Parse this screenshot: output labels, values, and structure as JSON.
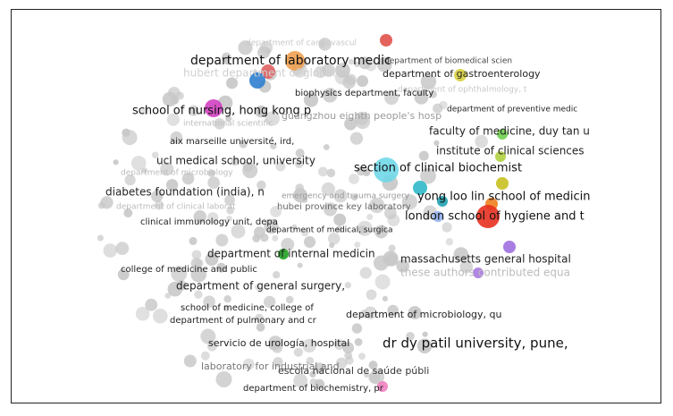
{
  "nodes": [
    {
      "label": "department of cardiovascul"
    },
    {
      "label": "department of biomedical scien"
    },
    {
      "label": "department of laboratory medic"
    },
    {
      "label": "hubert department of global"
    },
    {
      "label": "department of gastroenterology"
    },
    {
      "label": "department of ophthalmology, t"
    },
    {
      "label": "biophysics department, faculty"
    },
    {
      "label": "school of nursing, hong kong p"
    },
    {
      "label": "department of preventive medic"
    },
    {
      "label": "guangzhou eighth people's hosp"
    },
    {
      "label": "international scientific"
    },
    {
      "label": "faculty of medicine, duy tan u"
    },
    {
      "label": "aix marseille université, ird,"
    },
    {
      "label": "institute of clinical sciences"
    },
    {
      "label": "ucl medical school, university"
    },
    {
      "label": "section of clinical biochemist"
    },
    {
      "label": "department of microbiology"
    },
    {
      "label": "emergency and trauma surgery"
    },
    {
      "label": "diabetes foundation (india), n"
    },
    {
      "label": "yong loo lin school of medicin"
    },
    {
      "label": "department of clinical laborat"
    },
    {
      "label": "hubei province key laboratory"
    },
    {
      "label": "london school of hygiene and t"
    },
    {
      "label": "clinical immunology unit, depa"
    },
    {
      "label": "department of medical, surgica"
    },
    {
      "label": "department of internal medicin"
    },
    {
      "label": "massachusetts general hospital"
    },
    {
      "label": "college of medicine and public"
    },
    {
      "label": "these authors contributed equa"
    },
    {
      "label": "department of general surgery,"
    },
    {
      "label": "school of medicine, college of"
    },
    {
      "label": "department of microbiology, qu"
    },
    {
      "label": "department of pulmonary and cr"
    },
    {
      "label": "servicio de urología, hospital"
    },
    {
      "label": "dr dy patil university, pune,"
    },
    {
      "label": "laboratory for industrial and"
    },
    {
      "label": "escola nacional de saúde públi"
    },
    {
      "label": "department of biochemistry, pr"
    }
  ]
}
